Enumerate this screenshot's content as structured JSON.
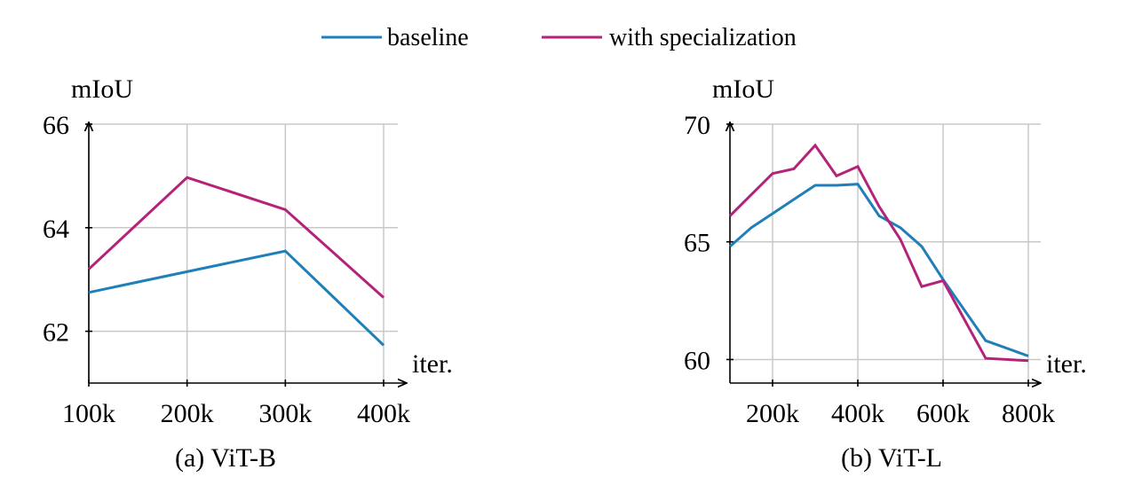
{
  "legend": [
    {
      "name": "baseline",
      "color": "#1f7fb8"
    },
    {
      "name": "with specialization",
      "color": "#b5227a"
    }
  ],
  "chart_data": [
    {
      "type": "line",
      "caption": "(a) ViT-B",
      "xlabel": "iter.",
      "ylabel": "mIoU",
      "xlim": [
        100,
        400
      ],
      "ylim": [
        61,
        66
      ],
      "xticks": [
        100,
        200,
        300,
        400
      ],
      "xtick_labels": [
        "100k",
        "200k",
        "300k",
        "400k"
      ],
      "yticks": [
        62,
        64,
        66
      ],
      "ytick_labels": [
        "62",
        "64",
        "66"
      ],
      "grid": true,
      "series": [
        {
          "name": "baseline",
          "x": [
            100,
            200,
            300,
            400
          ],
          "y": [
            62.75,
            63.15,
            63.55,
            61.73
          ]
        },
        {
          "name": "with specialization",
          "x": [
            100,
            200,
            300,
            400
          ],
          "y": [
            63.2,
            64.97,
            64.35,
            62.65
          ]
        }
      ]
    },
    {
      "type": "line",
      "caption": "(b) ViT-L",
      "xlabel": "iter.",
      "ylabel": "mIoU",
      "xlim": [
        100,
        800
      ],
      "ylim": [
        59,
        70
      ],
      "xticks": [
        200,
        400,
        600,
        800
      ],
      "xtick_labels": [
        "200k",
        "400k",
        "600k",
        "800k"
      ],
      "yticks": [
        60,
        65,
        70
      ],
      "ytick_labels": [
        "60",
        "65",
        "70"
      ],
      "grid": true,
      "series": [
        {
          "name": "baseline",
          "x": [
            100,
            150,
            200,
            250,
            300,
            350,
            400,
            450,
            500,
            550,
            600,
            700,
            800
          ],
          "y": [
            64.8,
            65.6,
            66.2,
            66.8,
            67.4,
            67.4,
            67.45,
            66.1,
            65.6,
            64.8,
            63.4,
            60.8,
            60.15
          ]
        },
        {
          "name": "with specialization",
          "x": [
            100,
            150,
            200,
            250,
            300,
            350,
            400,
            450,
            500,
            550,
            600,
            700,
            800
          ],
          "y": [
            66.1,
            67.0,
            67.9,
            68.1,
            69.1,
            67.8,
            68.2,
            66.5,
            65.1,
            63.1,
            63.35,
            60.05,
            59.95
          ]
        }
      ]
    }
  ]
}
